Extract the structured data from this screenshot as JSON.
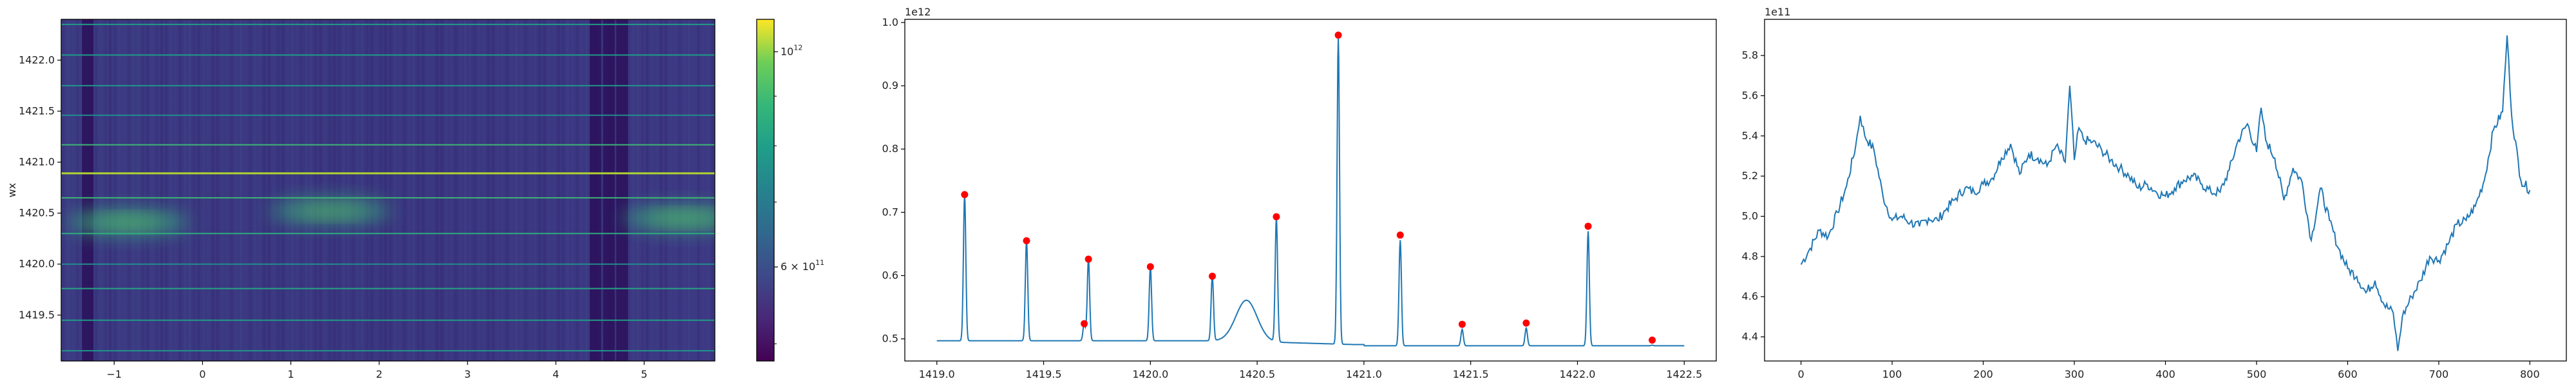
{
  "chart_data": [
    {
      "type": "heatmap",
      "ylabel": "wx",
      "xlim": [
        -1.6,
        5.8
      ],
      "ylim": [
        1419.05,
        1422.4
      ],
      "x_ticks": [
        -1,
        0,
        1,
        2,
        3,
        4,
        5
      ],
      "x_tick_labels": [
        "−1",
        "0",
        "1",
        "2",
        "3",
        "4",
        "5"
      ],
      "y_ticks": [
        1419.5,
        1420.0,
        1420.5,
        1421.0,
        1421.5,
        1422.0
      ],
      "y_tick_labels": [
        "1419.5",
        "1420.0",
        "1420.5",
        "1421.0",
        "1421.5",
        "1422.0"
      ],
      "colormap": "viridis",
      "colorbar": {
        "scale": "log",
        "range": [
          480000000000.0,
          1080000000000.0
        ],
        "ticks": [
          {
            "value": 600000000000.0,
            "label": "6 × 10",
            "exp": "11"
          },
          {
            "value": 1000000000000.0,
            "label": "10",
            "exp": "12"
          }
        ]
      },
      "bright_rows_y": [
        1420.89,
        1420.65,
        1420.3,
        1421.17,
        1419.76,
        1422.05,
        1419.45,
        1421.75,
        1420.0,
        1419.15,
        1421.46,
        1422.35
      ],
      "blobs": [
        {
          "x": -0.85,
          "y": 1420.41,
          "intensity": 0.6
        },
        {
          "x": 1.45,
          "y": 1420.52,
          "intensity": 0.55
        },
        {
          "x": 5.45,
          "y": 1420.45,
          "intensity": 0.6
        }
      ],
      "dark_columns_x": [
        4.45,
        4.6,
        4.75,
        -1.3
      ]
    },
    {
      "type": "line",
      "xlim": [
        1418.85,
        1422.65
      ],
      "ylim": [
        0.465,
        1.005
      ],
      "x_ticks": [
        1419.0,
        1419.5,
        1420.0,
        1420.5,
        1421.0,
        1421.5,
        1422.0,
        1422.5
      ],
      "x_tick_labels": [
        "1419.0",
        "1419.5",
        "1420.0",
        "1420.5",
        "1421.0",
        "1421.5",
        "1422.0",
        "1422.5"
      ],
      "y_ticks": [
        0.5,
        0.6,
        0.7,
        0.8,
        0.9,
        1.0
      ],
      "y_tick_labels": [
        "0.5",
        "0.6",
        "0.7",
        "0.8",
        "0.9",
        "1.0"
      ],
      "y_offset_label": "1e12",
      "line_color": "#1f77b4",
      "marker_color": "#ff0000",
      "baseline": 0.497,
      "peaks": [
        {
          "x": 1419.13,
          "y": 0.728
        },
        {
          "x": 1419.42,
          "y": 0.655
        },
        {
          "x": 1419.69,
          "y": 0.524
        },
        {
          "x": 1419.71,
          "y": 0.626
        },
        {
          "x": 1420.0,
          "y": 0.614
        },
        {
          "x": 1420.29,
          "y": 0.599
        },
        {
          "x": 1420.59,
          "y": 0.693
        },
        {
          "x": 1420.88,
          "y": 0.98
        },
        {
          "x": 1421.17,
          "y": 0.664
        },
        {
          "x": 1421.46,
          "y": 0.523
        },
        {
          "x": 1421.76,
          "y": 0.525
        },
        {
          "x": 1422.05,
          "y": 0.678
        },
        {
          "x": 1422.35,
          "y": 0.498
        }
      ],
      "bump": {
        "x": 1420.45,
        "y": 0.562
      }
    },
    {
      "type": "line",
      "xlim": [
        -40,
        840
      ],
      "ylim": [
        4.28,
        5.98
      ],
      "x_ticks": [
        0,
        100,
        200,
        300,
        400,
        500,
        600,
        700,
        800
      ],
      "x_tick_labels": [
        "0",
        "100",
        "200",
        "300",
        "400",
        "500",
        "600",
        "700",
        "800"
      ],
      "y_ticks": [
        4.4,
        4.6,
        4.8,
        5.0,
        5.2,
        5.4,
        5.6,
        5.8
      ],
      "y_tick_labels": [
        "4.4",
        "4.6",
        "4.8",
        "5.0",
        "5.2",
        "5.4",
        "5.6",
        "5.8"
      ],
      "y_offset_label": "1e11",
      "line_color": "#1f77b4",
      "x": [
        0,
        10,
        20,
        30,
        40,
        50,
        60,
        65,
        70,
        80,
        90,
        100,
        110,
        120,
        130,
        140,
        150,
        160,
        170,
        180,
        190,
        200,
        210,
        220,
        230,
        240,
        250,
        260,
        270,
        280,
        290,
        295,
        300,
        305,
        310,
        320,
        330,
        340,
        350,
        360,
        370,
        380,
        390,
        400,
        410,
        420,
        430,
        440,
        450,
        460,
        470,
        480,
        490,
        500,
        505,
        510,
        520,
        530,
        540,
        550,
        560,
        570,
        580,
        590,
        600,
        610,
        620,
        630,
        640,
        650,
        655,
        660,
        670,
        680,
        690,
        700,
        710,
        720,
        730,
        740,
        750,
        760,
        770,
        775,
        780,
        790,
        800
      ],
      "y": [
        4.76,
        4.84,
        4.93,
        4.9,
        5.02,
        5.15,
        5.35,
        5.5,
        5.4,
        5.33,
        5.1,
        4.98,
        5.0,
        4.97,
        4.95,
        4.99,
        4.98,
        5.04,
        5.09,
        5.14,
        5.12,
        5.16,
        5.19,
        5.29,
        5.36,
        5.21,
        5.31,
        5.29,
        5.25,
        5.35,
        5.27,
        5.65,
        5.28,
        5.44,
        5.38,
        5.37,
        5.33,
        5.28,
        5.24,
        5.2,
        5.14,
        5.16,
        5.12,
        5.1,
        5.14,
        5.18,
        5.2,
        5.16,
        5.12,
        5.12,
        5.23,
        5.38,
        5.46,
        5.32,
        5.54,
        5.38,
        5.29,
        5.08,
        5.24,
        5.17,
        4.88,
        5.14,
        4.98,
        4.84,
        4.74,
        4.7,
        4.62,
        4.68,
        4.56,
        4.52,
        4.33,
        4.5,
        4.6,
        4.68,
        4.8,
        4.78,
        4.86,
        4.96,
        4.98,
        5.05,
        5.18,
        5.43,
        5.52,
        5.9,
        5.5,
        5.18,
        5.13
      ]
    }
  ]
}
